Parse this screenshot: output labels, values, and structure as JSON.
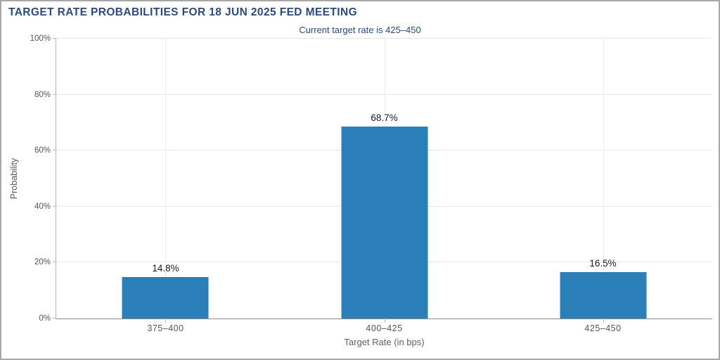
{
  "chart_data": {
    "type": "bar",
    "title": "TARGET RATE PROBABILITIES FOR 18 JUN 2025 FED MEETING",
    "subtitle": "Current target rate is 425–450",
    "categories": [
      "375–400",
      "400–425",
      "425–450"
    ],
    "values": [
      14.8,
      68.7,
      16.5
    ],
    "value_labels": [
      "14.8%",
      "68.7%",
      "16.5%"
    ],
    "xlabel": "Target Rate (in bps)",
    "ylabel": "Probability",
    "ylim": [
      0,
      100
    ],
    "yticks": [
      0,
      20,
      40,
      60,
      80,
      100
    ],
    "ytick_labels": [
      "0%",
      "20%",
      "40%",
      "60%",
      "80%",
      "100%"
    ],
    "grid": true,
    "legend": "none",
    "bar_color": "#2a7fb9",
    "title_color": "#2c4a7c",
    "axis_text_color": "#555555"
  }
}
